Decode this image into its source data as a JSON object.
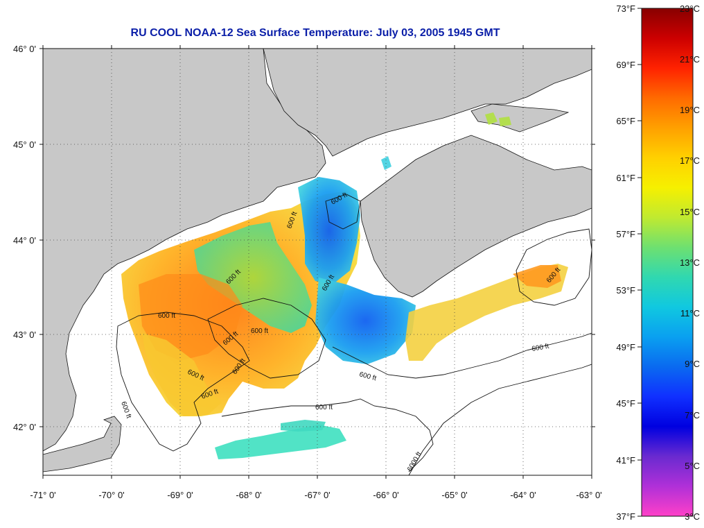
{
  "title": "RU COOL  NOAA-12  Sea Surface Temperature:  July 03, 2005 1945 GMT",
  "map": {
    "lon_labels": [
      "-71° 0'",
      "-70° 0'",
      "-69° 0'",
      "-68° 0'",
      "-67° 0'",
      "-66° 0'",
      "-65° 0'",
      "-64° 0'",
      "-63° 0'"
    ],
    "lat_labels": [
      "46° 0'",
      "45° 0'",
      "44° 0'",
      "43° 0'",
      "42° 0'"
    ],
    "land_color": "#c8c8c8",
    "grid": "dotted",
    "contour_labels": [
      "600 ft",
      "600 ft",
      "600 ft",
      "600 ft",
      "600 ft",
      "600 ft",
      "600 ft",
      "600 ft",
      "600 ft",
      "600 ft",
      "600 ft",
      "600 ft",
      "600 ft",
      "600 ft",
      "600 ft",
      "6000 ft"
    ]
  },
  "colorbar": {
    "fahrenheit_labels": [
      "73°F",
      "69°F",
      "65°F",
      "61°F",
      "57°F",
      "53°F",
      "49°F",
      "45°F",
      "41°F",
      "37°F"
    ],
    "celsius_labels": [
      "23°C",
      "21°C",
      "19°C",
      "17°C",
      "15°C",
      "13°C",
      "11°C",
      "9°C",
      "7°C",
      "5°C",
      "3°C"
    ],
    "colors": [
      "#880000",
      "#cc0000",
      "#ff2200",
      "#ff6a00",
      "#ffa000",
      "#ffd000",
      "#f6f000",
      "#c0ea30",
      "#6ee070",
      "#30d8b0",
      "#10c8e0",
      "#0aa0f0",
      "#0a6af0",
      "#1030ff",
      "#0000e0",
      "#6a2ad0",
      "#b030d8",
      "#ff40c8"
    ]
  }
}
